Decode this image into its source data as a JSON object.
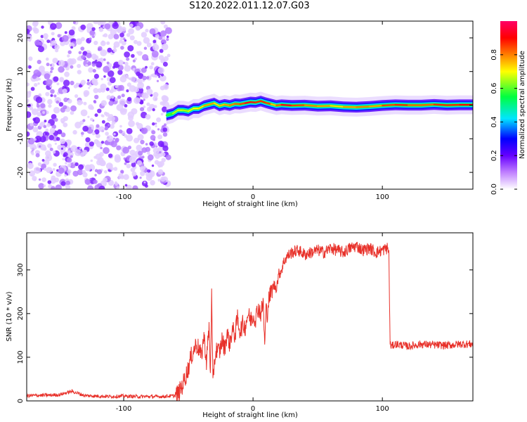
{
  "title": "S120.2022.011.12.07.G03",
  "chart_data": [
    {
      "type": "heatmap",
      "title": "S120.2022.011.12.07.G03",
      "xlabel": "Height of straight line (km)",
      "ylabel": "Frequency (Hz)",
      "xlim": [
        -175,
        170
      ],
      "ylim": [
        -25,
        25
      ],
      "xticks": [
        -100,
        0,
        100
      ],
      "yticks": [
        -20,
        -10,
        0,
        10,
        20
      ],
      "grid": false,
      "colorbar": {
        "label": "Normalized spectral amplitude",
        "range": [
          0.0,
          1.0
        ],
        "ticks": [
          0.0,
          0.2,
          0.4,
          0.6,
          0.8
        ],
        "colors": [
          "#ffffff",
          "#c080ff",
          "#6600ff",
          "#0000ff",
          "#00e5ff",
          "#00ff40",
          "#ffff00",
          "#ff8000",
          "#ff0000",
          "#ff0066"
        ]
      },
      "noise_region_km": [
        -175,
        -67
      ],
      "ridge": {
        "x": [
          -67,
          -62,
          -58,
          -54,
          -50,
          -46,
          -42,
          -38,
          -34,
          -30,
          -26,
          -22,
          -18,
          -14,
          -10,
          -6,
          -2,
          2,
          6,
          10,
          14,
          18,
          22,
          30,
          40,
          50,
          60,
          70,
          80,
          90,
          100,
          110,
          120,
          130,
          140,
          150,
          160,
          170
        ],
        "freq": [
          -3,
          -2.5,
          -1.5,
          -1.5,
          -1.8,
          -1,
          -1,
          -0.2,
          0.2,
          0.6,
          -0.2,
          0.2,
          -0.1,
          0.4,
          0.3,
          0.6,
          0.9,
          0.8,
          1.2,
          0.7,
          0.3,
          -0.1,
          0.1,
          -0.1,
          0,
          -0.3,
          -0.2,
          -0.5,
          -0.6,
          -0.4,
          -0.1,
          0.1,
          0,
          0,
          0.2,
          0,
          0.1,
          0.1
        ],
        "amp": [
          0.45,
          0.5,
          0.6,
          0.55,
          0.55,
          0.6,
          0.6,
          0.65,
          0.7,
          0.65,
          0.6,
          0.7,
          0.65,
          0.75,
          0.7,
          0.8,
          0.85,
          0.8,
          0.75,
          0.8,
          0.7,
          0.6,
          0.85,
          0.8,
          0.7,
          0.7,
          0.65,
          0.6,
          0.75,
          0.65,
          0.7,
          0.8,
          0.75,
          0.7,
          0.75,
          0.8,
          0.75,
          0.85
        ]
      }
    },
    {
      "type": "line",
      "xlabel": "Height of straight line (km)",
      "ylabel": "SNR (10 * v/v)",
      "xlim": [
        -175,
        170
      ],
      "ylim": [
        0,
        385
      ],
      "xticks": [
        -100,
        0,
        100
      ],
      "yticks": [
        0,
        100,
        200,
        300
      ],
      "grid": false,
      "series": [
        {
          "color": "#e8312a",
          "x": [
            -175,
            -160,
            -150,
            -140,
            -130,
            -120,
            -110,
            -100,
            -90,
            -80,
            -70,
            -60,
            -57,
            -54,
            -50,
            -48,
            -46,
            -44,
            -42,
            -40,
            -38,
            -36,
            -34,
            -33,
            -32,
            -31,
            -30,
            -28,
            -26,
            -24,
            -22,
            -20,
            -18,
            -16,
            -14,
            -12,
            -10,
            -8,
            -6,
            -4,
            -2,
            0,
            2,
            4,
            6,
            8,
            9,
            10,
            11,
            12,
            14,
            16,
            18,
            20,
            22,
            24,
            26,
            28,
            30,
            35,
            40,
            45,
            50,
            55,
            60,
            65,
            70,
            75,
            80,
            85,
            90,
            95,
            100,
            104,
            105,
            106,
            107,
            110,
            115,
            120,
            130,
            140,
            150,
            160,
            170
          ],
          "y": [
            12,
            13,
            14,
            22,
            12,
            11,
            10,
            11,
            10,
            10,
            10,
            12,
            20,
            40,
            75,
            100,
            115,
            130,
            120,
            100,
            150,
            90,
            170,
            60,
            240,
            30,
            90,
            120,
            110,
            140,
            120,
            155,
            130,
            165,
            150,
            190,
            160,
            175,
            170,
            200,
            185,
            195,
            190,
            215,
            200,
            225,
            120,
            210,
            200,
            230,
            250,
            265,
            260,
            290,
            300,
            320,
            330,
            335,
            340,
            345,
            335,
            340,
            345,
            340,
            350,
            345,
            340,
            350,
            355,
            345,
            350,
            340,
            345,
            350,
            340,
            130,
            125,
            130,
            128,
            125,
            130,
            128,
            127,
            130,
            130
          ]
        }
      ]
    }
  ]
}
